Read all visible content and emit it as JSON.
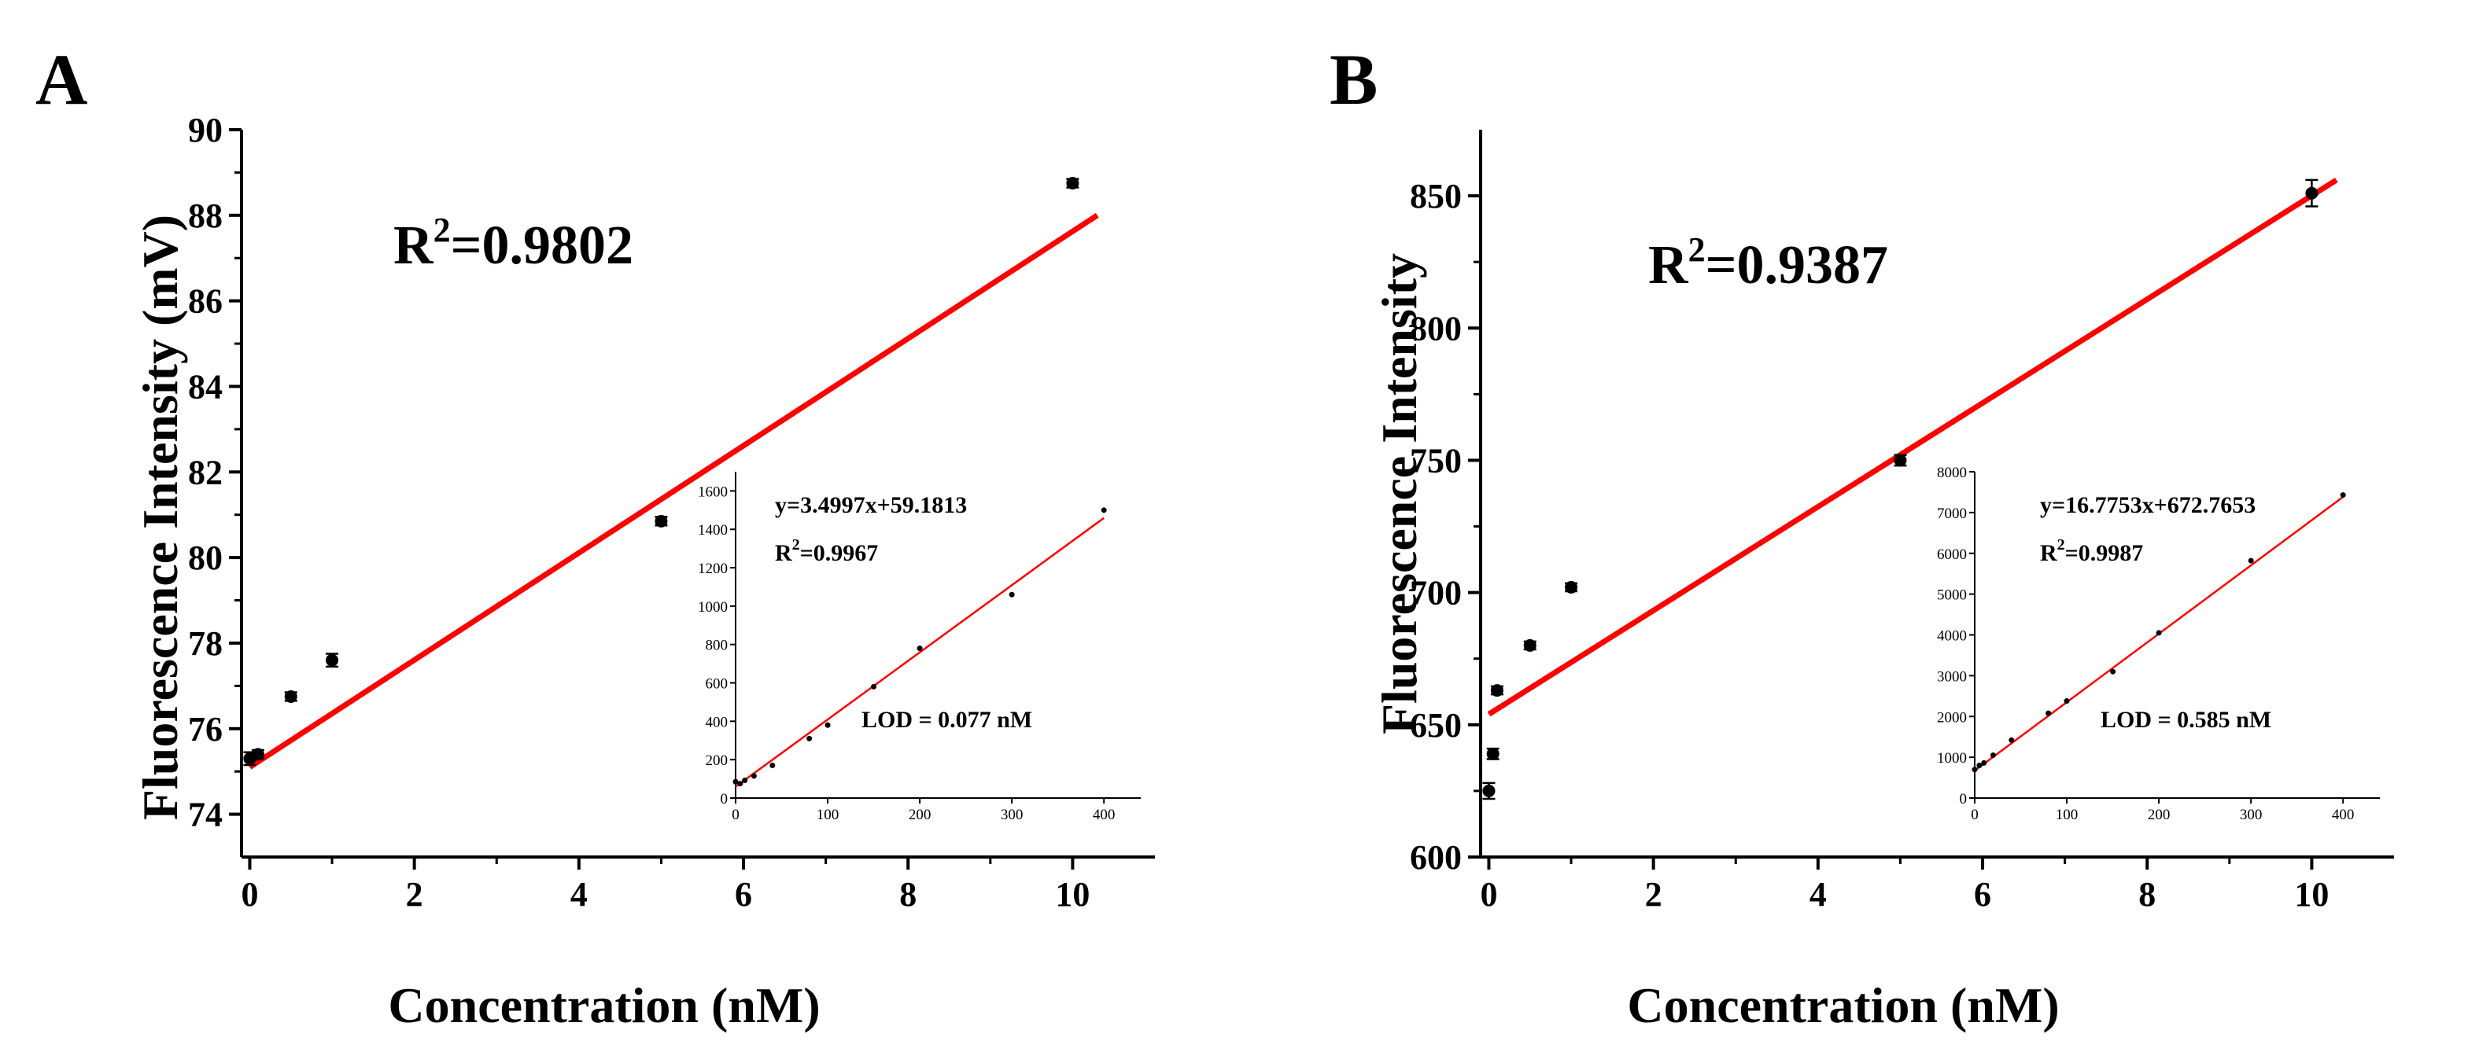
{
  "chart_data": [
    {
      "panel": "A",
      "type": "scatter",
      "xlabel": "Concentration (nM)",
      "ylabel": "Fluorescence Intensity (mV)",
      "xlim": [
        -0.1,
        11
      ],
      "ylim": [
        73,
        90
      ],
      "xticks": [
        0,
        2,
        4,
        6,
        8,
        10
      ],
      "yticks": [
        74,
        76,
        78,
        80,
        82,
        84,
        86,
        88,
        90
      ],
      "annotation_main": "R2=0.9802",
      "annotation_base": "R",
      "annotation_sup": "2",
      "annotation_rest": "=0.9802",
      "series": [
        {
          "name": "measured",
          "x": [
            0,
            0.1,
            0.5,
            1,
            5,
            10
          ],
          "y": [
            75.3,
            75.4,
            76.75,
            77.6,
            80.85,
            88.75
          ],
          "err": [
            0.15,
            0.1,
            0.1,
            0.15,
            0.1,
            0.1
          ]
        },
        {
          "name": "linear fit",
          "x": [
            0,
            10.3
          ],
          "y": [
            75.1,
            88.0
          ],
          "color": "#ff0000"
        }
      ],
      "inset": {
        "type": "scatter",
        "xlim": [
          0,
          440
        ],
        "ylim": [
          0,
          1700
        ],
        "xticks": [
          0,
          100,
          200,
          300,
          400
        ],
        "yticks": [
          0,
          200,
          400,
          600,
          800,
          1000,
          1200,
          1400,
          1600
        ],
        "equation": "y=3.4997x+59.1813",
        "r2_base": "R",
        "r2_sup": "2",
        "r2_rest": "=0.9967",
        "lod": "LOD = 0.077 nM",
        "points": {
          "x": [
            0,
            5,
            10,
            20,
            40,
            80,
            100,
            150,
            200,
            300,
            400
          ],
          "y": [
            85,
            75,
            92,
            115,
            170,
            310,
            380,
            580,
            780,
            1060,
            1500
          ]
        },
        "fit": {
          "x": [
            0,
            400
          ],
          "y": [
            59.2,
            1459.1
          ]
        }
      }
    },
    {
      "panel": "B",
      "type": "scatter",
      "xlabel": "Concentration (nM)",
      "ylabel": "Fluorescence Intensity",
      "xlim": [
        -0.1,
        11
      ],
      "ylim": [
        600,
        875
      ],
      "xticks": [
        0,
        2,
        4,
        6,
        8,
        10
      ],
      "yticks": [
        600,
        650,
        700,
        750,
        800,
        850
      ],
      "annotation_base": "R",
      "annotation_sup": "2",
      "annotation_rest": "=0.9387",
      "series": [
        {
          "name": "measured",
          "x": [
            0,
            0.05,
            0.1,
            0.5,
            1,
            5,
            10
          ],
          "y": [
            625,
            639,
            663,
            680,
            702,
            750,
            851
          ],
          "err": [
            3,
            2,
            1.5,
            1.5,
            1.5,
            2,
            5
          ]
        },
        {
          "name": "linear fit",
          "x": [
            0,
            10.3
          ],
          "y": [
            654,
            856
          ],
          "color": "#ff0000"
        }
      ],
      "inset": {
        "type": "scatter",
        "xlim": [
          0,
          440
        ],
        "ylim": [
          0,
          8000
        ],
        "xticks": [
          0,
          100,
          200,
          300,
          400
        ],
        "yticks": [
          0,
          1000,
          2000,
          3000,
          4000,
          5000,
          6000,
          7000,
          8000
        ],
        "equation": "y=16.7753x+672.7653",
        "r2_base": "R",
        "r2_sup": "2",
        "r2_rest": "=0.9987",
        "lod": "LOD = 0.585 nM",
        "points": {
          "x": [
            0,
            5,
            10,
            20,
            40,
            80,
            100,
            150,
            200,
            300,
            400
          ],
          "y": [
            700,
            800,
            860,
            1050,
            1420,
            2080,
            2380,
            3100,
            4050,
            5820,
            7430
          ]
        },
        "fit": {
          "x": [
            0,
            400
          ],
          "y": [
            672.8,
            7382.9
          ]
        }
      }
    }
  ]
}
